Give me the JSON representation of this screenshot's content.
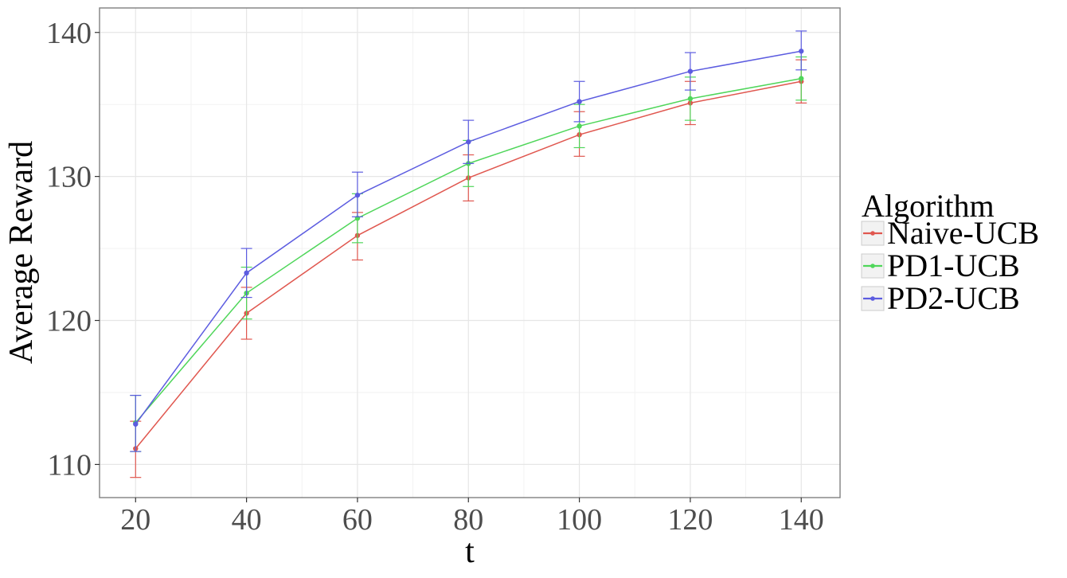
{
  "chart_data": {
    "type": "line",
    "xlabel": "t",
    "ylabel": "Average Reward",
    "x": [
      20,
      40,
      60,
      80,
      100,
      120,
      140
    ],
    "xlim": [
      13.5,
      147
    ],
    "ylim": [
      107.7,
      141.7
    ],
    "x_ticks": [
      20,
      40,
      60,
      80,
      100,
      120,
      140
    ],
    "y_ticks": [
      110,
      120,
      130,
      140
    ],
    "grid": true,
    "error_bars": true,
    "legend": {
      "title": "Algorithm",
      "placement": "right"
    },
    "series": [
      {
        "name": "Naive-UCB",
        "color": "#e0574f",
        "values": [
          111.1,
          120.5,
          125.9,
          129.9,
          132.9,
          135.1,
          136.6
        ],
        "error_low": [
          109.1,
          118.7,
          124.2,
          128.3,
          131.4,
          133.6,
          135.1
        ],
        "error_high": [
          113.0,
          122.3,
          127.5,
          131.5,
          134.5,
          136.6,
          138.1
        ]
      },
      {
        "name": "PD1-UCB",
        "color": "#4fd65a",
        "values": [
          112.9,
          121.9,
          127.1,
          130.9,
          133.5,
          135.4,
          136.8
        ],
        "error_low": [
          110.9,
          120.1,
          125.4,
          129.3,
          132.0,
          133.9,
          135.3
        ],
        "error_high": [
          114.8,
          123.7,
          128.8,
          132.5,
          135.0,
          136.9,
          138.3
        ]
      },
      {
        "name": "PD2-UCB",
        "color": "#5c5ce0",
        "values": [
          112.8,
          123.3,
          128.7,
          132.4,
          135.2,
          137.3,
          138.7
        ],
        "error_low": [
          110.9,
          121.6,
          127.2,
          130.9,
          133.8,
          136.0,
          137.4
        ],
        "error_high": [
          114.8,
          125.0,
          130.3,
          133.9,
          136.6,
          138.6,
          140.1
        ]
      }
    ]
  }
}
